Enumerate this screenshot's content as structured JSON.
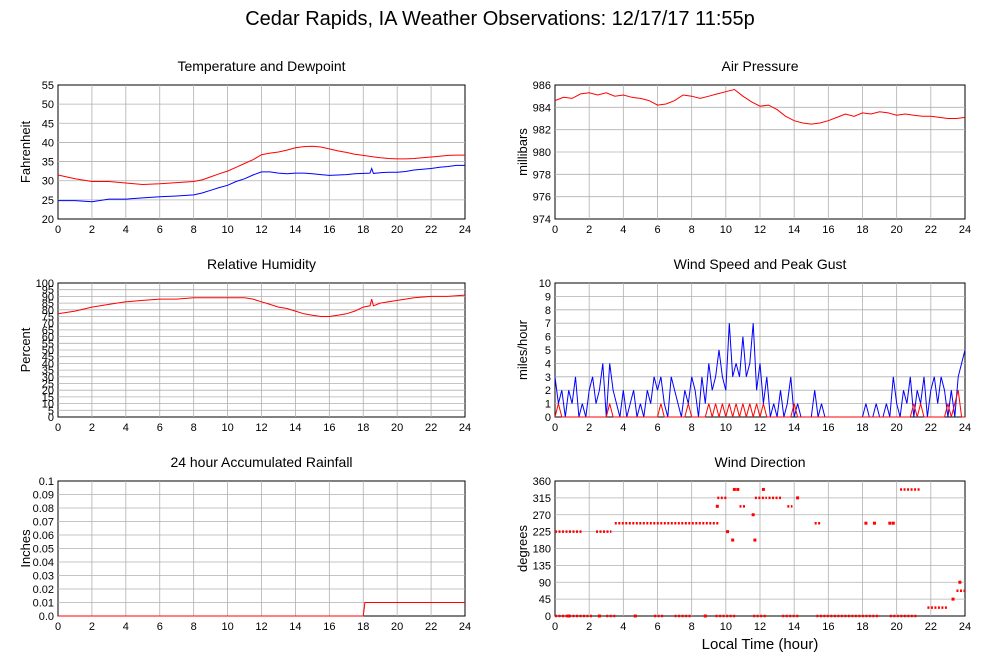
{
  "title": "Cedar Rapids, IA Weather Observations: 12/17/17 11:55p",
  "xlabel": "Local Time (hour)",
  "chart_data": [
    {
      "id": "temp",
      "type": "line",
      "title": "Temperature and Dewpoint",
      "xlabel": "",
      "ylabel": "Fahrenheit",
      "xlim": [
        0,
        24
      ],
      "ylim": [
        20,
        55
      ],
      "yticks": [
        20,
        25,
        30,
        35,
        40,
        45,
        50,
        55
      ],
      "xticks": [
        0,
        2,
        4,
        6,
        8,
        10,
        12,
        14,
        16,
        18,
        20,
        22,
        24
      ],
      "grid": true,
      "series": [
        {
          "color": "#ff0000",
          "x": [
            0,
            1,
            2,
            3,
            4,
            5,
            6,
            7,
            8,
            8.5,
            9,
            9.5,
            10,
            10.5,
            11,
            11.5,
            12,
            12.5,
            13,
            13.5,
            14,
            14.5,
            15,
            15.5,
            16,
            16.5,
            17,
            17.5,
            18,
            18.5,
            19,
            19.5,
            20,
            20.5,
            21,
            21.5,
            22,
            22.5,
            23,
            23.5,
            24
          ],
          "values": [
            31.5,
            30.5,
            29.8,
            29.8,
            29.4,
            29.0,
            29.2,
            29.5,
            29.8,
            30.2,
            31.0,
            31.8,
            32.5,
            33.5,
            34.5,
            35.5,
            36.8,
            37.2,
            37.5,
            38.0,
            38.6,
            38.9,
            39.0,
            38.8,
            38.3,
            37.8,
            37.4,
            36.9,
            36.6,
            36.3,
            36.0,
            35.8,
            35.7,
            35.7,
            35.8,
            36.0,
            36.2,
            36.4,
            36.6,
            36.7,
            36.7
          ]
        },
        {
          "color": "#0000ff",
          "x": [
            0,
            1,
            2,
            3,
            4,
            5,
            6,
            7,
            8,
            8.5,
            9,
            9.5,
            10,
            10.5,
            11,
            11.5,
            12,
            12.5,
            13,
            13.5,
            14,
            14.5,
            15,
            15.5,
            16,
            16.5,
            17,
            17.5,
            18,
            18.4,
            18.5,
            18.6,
            19,
            19.5,
            20,
            20.5,
            21,
            21.5,
            22,
            22.5,
            23,
            23.5,
            24
          ],
          "values": [
            24.8,
            24.8,
            24.5,
            25.2,
            25.2,
            25.5,
            25.8,
            26.0,
            26.3,
            26.8,
            27.5,
            28.2,
            28.8,
            29.8,
            30.5,
            31.5,
            32.3,
            32.3,
            32.0,
            31.8,
            32.0,
            32.0,
            31.8,
            31.6,
            31.4,
            31.5,
            31.6,
            31.8,
            31.9,
            32.0,
            33.2,
            31.9,
            32.1,
            32.2,
            32.2,
            32.4,
            32.8,
            33.0,
            33.2,
            33.5,
            33.7,
            34.0,
            34.0
          ]
        }
      ]
    },
    {
      "id": "pressure",
      "type": "line",
      "title": "Air Pressure",
      "xlabel": "",
      "ylabel": "millibars",
      "xlim": [
        0,
        24
      ],
      "ylim": [
        974,
        986
      ],
      "yticks": [
        974,
        976,
        978,
        980,
        982,
        984,
        986
      ],
      "xticks": [
        0,
        2,
        4,
        6,
        8,
        10,
        12,
        14,
        16,
        18,
        20,
        22,
        24
      ],
      "grid": true,
      "series": [
        {
          "color": "#ff0000",
          "x": [
            0,
            0.5,
            1,
            1.5,
            2,
            2.5,
            3,
            3.5,
            4,
            4.5,
            5,
            5.5,
            6,
            6.5,
            7,
            7.5,
            8,
            8.5,
            9,
            9.5,
            10,
            10.5,
            11,
            11.5,
            12,
            12.5,
            13,
            13.5,
            14,
            14.5,
            15,
            15.5,
            16,
            16.5,
            17,
            17.5,
            18,
            18.5,
            19,
            19.5,
            20,
            20.5,
            21,
            21.5,
            22,
            22.5,
            23,
            23.5,
            24
          ],
          "values": [
            984.6,
            984.9,
            984.8,
            985.2,
            985.3,
            985.1,
            985.3,
            985.0,
            985.1,
            984.9,
            984.8,
            984.6,
            984.2,
            984.3,
            984.6,
            985.1,
            985.0,
            984.8,
            985.0,
            985.2,
            985.4,
            985.6,
            985.0,
            984.5,
            984.1,
            984.2,
            983.8,
            983.2,
            982.8,
            982.6,
            982.5,
            982.6,
            982.8,
            983.1,
            983.4,
            983.2,
            983.5,
            983.4,
            983.6,
            983.5,
            983.3,
            983.4,
            983.3,
            983.2,
            983.2,
            983.1,
            983.0,
            983.0,
            983.1
          ]
        }
      ]
    },
    {
      "id": "humidity",
      "type": "line",
      "title": "Relative Humidity",
      "xlabel": "",
      "ylabel": "Percent",
      "xlim": [
        0,
        24
      ],
      "ylim": [
        0,
        100
      ],
      "yticks": [
        0,
        5,
        10,
        15,
        20,
        25,
        30,
        35,
        40,
        45,
        50,
        55,
        60,
        65,
        70,
        75,
        80,
        85,
        90,
        95,
        100
      ],
      "xticks": [
        0,
        2,
        4,
        6,
        8,
        10,
        12,
        14,
        16,
        18,
        20,
        22,
        24
      ],
      "grid": true,
      "series": [
        {
          "color": "#ff0000",
          "x": [
            0,
            1,
            2,
            3,
            4,
            5,
            6,
            7,
            8,
            9,
            10,
            11,
            11.5,
            12,
            12.5,
            13,
            13.5,
            14,
            14.5,
            15,
            15.5,
            16,
            16.5,
            17,
            17.5,
            18,
            18.4,
            18.5,
            18.6,
            19,
            19.5,
            20,
            20.5,
            21,
            22,
            23,
            24
          ],
          "values": [
            77,
            79,
            82,
            84,
            86,
            87,
            88,
            88,
            89,
            89,
            89,
            89,
            88,
            86,
            84,
            82,
            81,
            79,
            77,
            76,
            75,
            75,
            76,
            77,
            79,
            82,
            83,
            88,
            83,
            85,
            86,
            87,
            88,
            89,
            90,
            90,
            91
          ]
        }
      ]
    },
    {
      "id": "wind",
      "type": "line",
      "title": "Wind Speed and Peak Gust",
      "xlabel": "",
      "ylabel": "miles/hour",
      "xlim": [
        0,
        24
      ],
      "ylim": [
        0,
        10
      ],
      "yticks": [
        0,
        1,
        2,
        3,
        4,
        5,
        6,
        7,
        8,
        9,
        10
      ],
      "xticks": [
        0,
        2,
        4,
        6,
        8,
        10,
        12,
        14,
        16,
        18,
        20,
        22,
        24
      ],
      "grid": true,
      "series": [
        {
          "color": "#0000ff",
          "x": [
            0,
            0.2,
            0.4,
            0.6,
            0.8,
            1.0,
            1.2,
            1.4,
            1.6,
            1.8,
            2.0,
            2.2,
            2.4,
            2.6,
            2.8,
            3.0,
            3.2,
            3.4,
            3.6,
            3.8,
            4.0,
            4.2,
            4.4,
            4.6,
            4.8,
            5.0,
            5.2,
            5.4,
            5.6,
            5.8,
            6.0,
            6.2,
            6.4,
            6.6,
            6.8,
            7.0,
            7.2,
            7.4,
            7.6,
            7.8,
            8.0,
            8.2,
            8.4,
            8.6,
            8.8,
            9.0,
            9.2,
            9.4,
            9.6,
            9.8,
            10.0,
            10.2,
            10.4,
            10.6,
            10.8,
            11.0,
            11.2,
            11.4,
            11.6,
            11.8,
            12.0,
            12.2,
            12.4,
            12.6,
            12.8,
            13.0,
            13.2,
            13.4,
            13.6,
            13.8,
            14.0,
            14.2,
            14.4,
            14.6,
            14.8,
            15.0,
            15.2,
            15.4,
            15.6,
            15.8,
            16.0,
            17.0,
            18.0,
            18.2,
            18.4,
            18.6,
            18.8,
            19.0,
            19.2,
            19.4,
            19.6,
            19.8,
            20.0,
            20.2,
            20.4,
            20.6,
            20.8,
            21.0,
            21.2,
            21.4,
            21.6,
            21.8,
            22.0,
            22.2,
            22.4,
            22.6,
            22.8,
            23.0,
            23.2,
            23.4,
            23.6,
            23.8,
            24.0
          ],
          "values": [
            3,
            1,
            2,
            0,
            2,
            1,
            3,
            0,
            1,
            0,
            2,
            3,
            1,
            2,
            4,
            0,
            4,
            2,
            1,
            0,
            2,
            0,
            1,
            2,
            0,
            1,
            0,
            2,
            1,
            3,
            2,
            3,
            1,
            0,
            3,
            2,
            1,
            0,
            2,
            1,
            3,
            2,
            0,
            3,
            1,
            4,
            2,
            3,
            5,
            3,
            2,
            7,
            3,
            4,
            3,
            6,
            3,
            4,
            7,
            2,
            4,
            1,
            3,
            0,
            1,
            0,
            2,
            0,
            1,
            3,
            0,
            1,
            0,
            0,
            0,
            0,
            2,
            0,
            1,
            0,
            0,
            0,
            0,
            1,
            0,
            0,
            1,
            0,
            0,
            1,
            0,
            3,
            1,
            0,
            2,
            1,
            3,
            0,
            2,
            1,
            3,
            0,
            2,
            3,
            1,
            3,
            2,
            0,
            2,
            0,
            3,
            4,
            5
          ]
        },
        {
          "color": "#ff0000",
          "x": [
            0,
            0.2,
            0.4,
            0.6,
            3.0,
            3.2,
            3.4,
            6.0,
            6.2,
            6.4,
            7.6,
            7.8,
            8.0,
            8.8,
            9.0,
            9.2,
            9.4,
            9.6,
            9.8,
            10.0,
            10.2,
            10.4,
            10.6,
            10.8,
            11.0,
            11.2,
            11.4,
            11.6,
            11.8,
            12.0,
            12.2,
            12.4,
            13.8,
            14.0,
            14.2,
            20.8,
            21.0,
            21.2,
            21.4,
            21.6,
            22.8,
            23.0,
            23.2,
            23.4,
            23.6,
            23.8,
            24.0
          ],
          "values": [
            0,
            1,
            0,
            0,
            0,
            1,
            0,
            0,
            1,
            0,
            0,
            1,
            0,
            0,
            1,
            0,
            1,
            0,
            1,
            0,
            1,
            0,
            1,
            0,
            1,
            0,
            1,
            0,
            1,
            0,
            1,
            0,
            0,
            1,
            0,
            0,
            1,
            0,
            1,
            0,
            0,
            1,
            0,
            1,
            2,
            0,
            0
          ]
        }
      ]
    },
    {
      "id": "rain",
      "type": "line",
      "title": "24 hour Accumulated Rainfall",
      "xlabel": "",
      "ylabel": "Inches",
      "xlim": [
        0,
        24
      ],
      "ylim": [
        0,
        0.1
      ],
      "yticks": [
        "0.0",
        "0.01",
        "0.02",
        "0.03",
        "0.04",
        "0.05",
        "0.06",
        "0.07",
        "0.08",
        "0.09",
        "0.1"
      ],
      "xticks": [
        0,
        2,
        4,
        6,
        8,
        10,
        12,
        14,
        16,
        18,
        20,
        22,
        24
      ],
      "grid": true,
      "series": [
        {
          "color": "#ff0000",
          "x": [
            0,
            18.0,
            18.1,
            24
          ],
          "values": [
            0,
            0,
            0.01,
            0.01
          ]
        }
      ]
    },
    {
      "id": "direction",
      "type": "scatter",
      "title": "Wind Direction",
      "xlabel": "Local Time (hour)",
      "ylabel": "degrees",
      "xlim": [
        0,
        24
      ],
      "ylim": [
        0,
        360
      ],
      "yticks": [
        0,
        45,
        90,
        135,
        180,
        225,
        270,
        315,
        360
      ],
      "xticks": [
        0,
        2,
        4,
        6,
        8,
        10,
        12,
        14,
        16,
        18,
        20,
        22,
        24
      ],
      "grid": true,
      "series": [
        {
          "color": "#ff0000",
          "segments": [
            {
              "x0": 0.0,
              "x1": 1.6,
              "y": 225
            },
            {
              "x0": 2.4,
              "x1": 3.3,
              "y": 225
            },
            {
              "x0": 3.5,
              "x1": 9.6,
              "y": 247.5
            },
            {
              "x0": 9.5,
              "x1": 10.1,
              "y": 315
            },
            {
              "x0": 10.8,
              "x1": 11.2,
              "y": 292.5
            },
            {
              "x0": 11.7,
              "x1": 12.4,
              "y": 315
            },
            {
              "x0": 12.5,
              "x1": 13.3,
              "y": 315
            },
            {
              "x0": 13.6,
              "x1": 13.9,
              "y": 292.5
            },
            {
              "x0": 15.2,
              "x1": 15.6,
              "y": 247.5
            },
            {
              "x0": 20.2,
              "x1": 21.4,
              "y": 337.5
            },
            {
              "x0": 21.8,
              "x1": 23.0,
              "y": 22.5
            },
            {
              "x0": 23.5,
              "x1": 24.0,
              "y": 67.5
            },
            {
              "x0": 0.0,
              "x1": 2.2,
              "y": 0
            },
            {
              "x0": 3.0,
              "x1": 3.6,
              "y": 0
            },
            {
              "x0": 5.8,
              "x1": 6.4,
              "y": 0
            },
            {
              "x0": 7.0,
              "x1": 8.0,
              "y": 0
            },
            {
              "x0": 9.4,
              "x1": 10.6,
              "y": 0
            },
            {
              "x0": 11.6,
              "x1": 12.4,
              "y": 0
            },
            {
              "x0": 13.3,
              "x1": 14.3,
              "y": 0
            },
            {
              "x0": 15.3,
              "x1": 19.0,
              "y": 0
            },
            {
              "x0": 19.6,
              "x1": 21.2,
              "y": 0
            }
          ],
          "points": [
            [
              9.5,
              292.5
            ],
            [
              10.1,
              225
            ],
            [
              10.4,
              202.5
            ],
            [
              10.5,
              337.5
            ],
            [
              10.7,
              337.5
            ],
            [
              11.6,
              270
            ],
            [
              11.7,
              202.5
            ],
            [
              12.2,
              337.5
            ],
            [
              14.2,
              315
            ],
            [
              18.2,
              247.5
            ],
            [
              18.7,
              247.5
            ],
            [
              19.6,
              247.5
            ],
            [
              19.8,
              247.5
            ],
            [
              23.7,
              90
            ],
            [
              0.8,
              0
            ],
            [
              2.6,
              0
            ],
            [
              4.7,
              0
            ],
            [
              8.8,
              0
            ],
            [
              23.3,
              45
            ]
          ]
        }
      ]
    }
  ]
}
